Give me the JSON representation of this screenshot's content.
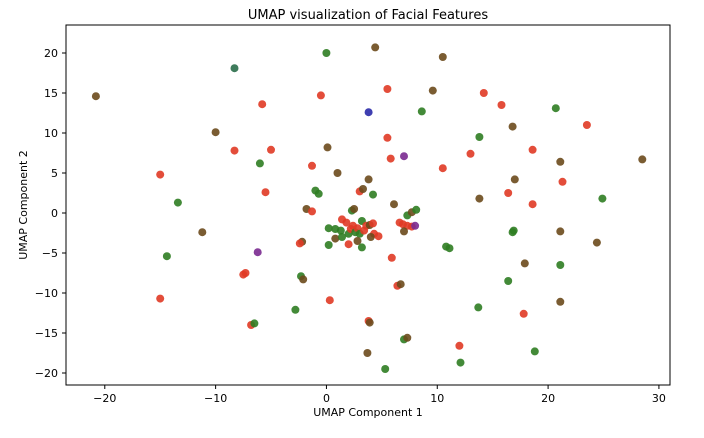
{
  "chart_data": {
    "type": "scatter",
    "title": "UMAP visualization of Facial Features",
    "xlabel": "UMAP Component 1",
    "ylabel": "UMAP Component 2",
    "xlim": [
      -23.5,
      31
    ],
    "ylim": [
      -21.5,
      23.5
    ],
    "xticks": [
      -20,
      -10,
      0,
      10,
      20,
      30
    ],
    "yticks": [
      -20,
      -15,
      -10,
      -5,
      0,
      5,
      10,
      15,
      20
    ],
    "grid": false,
    "colors": {
      "red": "#e03a25",
      "green": "#2f7d22",
      "olive": "#6b4a1c",
      "blue": "#2a2aa8",
      "purple": "#7a2a90",
      "teal": "#2a6e4a"
    },
    "points": [
      {
        "x": -20.8,
        "y": 14.6,
        "c": "olive"
      },
      {
        "x": -8.3,
        "y": 18.1,
        "c": "teal"
      },
      {
        "x": 0.0,
        "y": 20.0,
        "c": "green"
      },
      {
        "x": 4.4,
        "y": 20.7,
        "c": "olive"
      },
      {
        "x": 10.5,
        "y": 19.5,
        "c": "olive"
      },
      {
        "x": -5.8,
        "y": 13.6,
        "c": "red"
      },
      {
        "x": -0.5,
        "y": 14.7,
        "c": "red"
      },
      {
        "x": 5.5,
        "y": 15.5,
        "c": "red"
      },
      {
        "x": 9.6,
        "y": 15.3,
        "c": "olive"
      },
      {
        "x": 14.2,
        "y": 15.0,
        "c": "red"
      },
      {
        "x": 15.8,
        "y": 13.5,
        "c": "red"
      },
      {
        "x": 3.8,
        "y": 12.6,
        "c": "blue"
      },
      {
        "x": 8.6,
        "y": 12.7,
        "c": "green"
      },
      {
        "x": 20.7,
        "y": 13.1,
        "c": "green"
      },
      {
        "x": 23.5,
        "y": 11.0,
        "c": "red"
      },
      {
        "x": -10.0,
        "y": 10.1,
        "c": "olive"
      },
      {
        "x": -8.3,
        "y": 7.8,
        "c": "red"
      },
      {
        "x": -5.0,
        "y": 7.9,
        "c": "red"
      },
      {
        "x": 0.1,
        "y": 8.2,
        "c": "olive"
      },
      {
        "x": 5.5,
        "y": 9.4,
        "c": "red"
      },
      {
        "x": 13.8,
        "y": 9.5,
        "c": "green"
      },
      {
        "x": 16.8,
        "y": 10.8,
        "c": "olive"
      },
      {
        "x": 18.6,
        "y": 7.9,
        "c": "red"
      },
      {
        "x": 28.5,
        "y": 6.7,
        "c": "olive"
      },
      {
        "x": -15.0,
        "y": 4.8,
        "c": "red"
      },
      {
        "x": -6.0,
        "y": 6.2,
        "c": "green"
      },
      {
        "x": -1.3,
        "y": 5.9,
        "c": "red"
      },
      {
        "x": 1.0,
        "y": 5.0,
        "c": "olive"
      },
      {
        "x": 5.8,
        "y": 6.8,
        "c": "red"
      },
      {
        "x": 7.0,
        "y": 7.1,
        "c": "purple"
      },
      {
        "x": 10.5,
        "y": 5.6,
        "c": "red"
      },
      {
        "x": 13.0,
        "y": 7.4,
        "c": "red"
      },
      {
        "x": 21.1,
        "y": 6.4,
        "c": "olive"
      },
      {
        "x": 21.3,
        "y": 3.9,
        "c": "red"
      },
      {
        "x": 17.0,
        "y": 4.2,
        "c": "olive"
      },
      {
        "x": -5.5,
        "y": 2.6,
        "c": "red"
      },
      {
        "x": -1.0,
        "y": 2.8,
        "c": "green"
      },
      {
        "x": -0.7,
        "y": 2.4,
        "c": "green"
      },
      {
        "x": 3.0,
        "y": 2.7,
        "c": "red"
      },
      {
        "x": 3.3,
        "y": 3.0,
        "c": "olive"
      },
      {
        "x": 3.8,
        "y": 4.2,
        "c": "olive"
      },
      {
        "x": 4.2,
        "y": 2.3,
        "c": "green"
      },
      {
        "x": 6.1,
        "y": 1.1,
        "c": "olive"
      },
      {
        "x": 13.8,
        "y": 1.8,
        "c": "olive"
      },
      {
        "x": 16.4,
        "y": 2.5,
        "c": "red"
      },
      {
        "x": 18.6,
        "y": 1.1,
        "c": "red"
      },
      {
        "x": 24.9,
        "y": 1.8,
        "c": "green"
      },
      {
        "x": -13.4,
        "y": 1.3,
        "c": "green"
      },
      {
        "x": -1.8,
        "y": 0.5,
        "c": "olive"
      },
      {
        "x": -1.3,
        "y": 0.2,
        "c": "red"
      },
      {
        "x": 2.3,
        "y": 0.3,
        "c": "green"
      },
      {
        "x": 2.5,
        "y": 0.5,
        "c": "olive"
      },
      {
        "x": 7.3,
        "y": -0.3,
        "c": "green"
      },
      {
        "x": 7.7,
        "y": 0.1,
        "c": "olive"
      },
      {
        "x": 8.1,
        "y": 0.4,
        "c": "green"
      },
      {
        "x": -11.2,
        "y": -2.4,
        "c": "olive"
      },
      {
        "x": -2.2,
        "y": -3.6,
        "c": "olive"
      },
      {
        "x": -2.4,
        "y": -3.8,
        "c": "red"
      },
      {
        "x": 0.2,
        "y": -1.9,
        "c": "green"
      },
      {
        "x": 0.8,
        "y": -2.0,
        "c": "green"
      },
      {
        "x": 1.3,
        "y": -2.2,
        "c": "green"
      },
      {
        "x": 1.4,
        "y": -0.8,
        "c": "red"
      },
      {
        "x": 1.8,
        "y": -1.2,
        "c": "red"
      },
      {
        "x": 2.0,
        "y": -2.6,
        "c": "green"
      },
      {
        "x": 2.2,
        "y": -2.0,
        "c": "red"
      },
      {
        "x": 2.4,
        "y": -1.6,
        "c": "red"
      },
      {
        "x": 2.6,
        "y": -2.4,
        "c": "green"
      },
      {
        "x": 2.8,
        "y": -1.9,
        "c": "red"
      },
      {
        "x": 3.0,
        "y": -2.6,
        "c": "green"
      },
      {
        "x": 3.2,
        "y": -1.0,
        "c": "green"
      },
      {
        "x": 3.4,
        "y": -2.2,
        "c": "red"
      },
      {
        "x": 3.6,
        "y": -1.6,
        "c": "red"
      },
      {
        "x": 3.9,
        "y": -1.5,
        "c": "olive"
      },
      {
        "x": 4.2,
        "y": -1.3,
        "c": "red"
      },
      {
        "x": 4.3,
        "y": -2.6,
        "c": "red"
      },
      {
        "x": 4.0,
        "y": -3.0,
        "c": "olive"
      },
      {
        "x": 4.7,
        "y": -2.9,
        "c": "red"
      },
      {
        "x": 0.2,
        "y": -4.0,
        "c": "green"
      },
      {
        "x": 0.8,
        "y": -3.2,
        "c": "olive"
      },
      {
        "x": 1.4,
        "y": -3.0,
        "c": "green"
      },
      {
        "x": 2.0,
        "y": -3.9,
        "c": "red"
      },
      {
        "x": 2.8,
        "y": -3.5,
        "c": "olive"
      },
      {
        "x": 3.2,
        "y": -4.3,
        "c": "green"
      },
      {
        "x": 6.6,
        "y": -1.2,
        "c": "red"
      },
      {
        "x": 6.9,
        "y": -1.4,
        "c": "red"
      },
      {
        "x": 7.3,
        "y": -1.6,
        "c": "red"
      },
      {
        "x": 7.7,
        "y": -1.7,
        "c": "red"
      },
      {
        "x": 8.0,
        "y": -1.6,
        "c": "purple"
      },
      {
        "x": 7.0,
        "y": -2.3,
        "c": "olive"
      },
      {
        "x": 5.9,
        "y": -5.6,
        "c": "red"
      },
      {
        "x": -14.4,
        "y": -5.4,
        "c": "green"
      },
      {
        "x": -6.2,
        "y": -4.9,
        "c": "purple"
      },
      {
        "x": 10.8,
        "y": -4.2,
        "c": "green"
      },
      {
        "x": 11.1,
        "y": -4.4,
        "c": "green"
      },
      {
        "x": 16.8,
        "y": -2.4,
        "c": "green"
      },
      {
        "x": 16.9,
        "y": -2.2,
        "c": "green"
      },
      {
        "x": 21.1,
        "y": -2.3,
        "c": "olive"
      },
      {
        "x": 24.4,
        "y": -3.7,
        "c": "olive"
      },
      {
        "x": 17.9,
        "y": -6.3,
        "c": "olive"
      },
      {
        "x": 21.1,
        "y": -6.5,
        "c": "green"
      },
      {
        "x": -7.5,
        "y": -7.7,
        "c": "red"
      },
      {
        "x": -7.3,
        "y": -7.5,
        "c": "red"
      },
      {
        "x": -2.3,
        "y": -7.9,
        "c": "green"
      },
      {
        "x": -2.1,
        "y": -8.3,
        "c": "olive"
      },
      {
        "x": 6.4,
        "y": -9.1,
        "c": "red"
      },
      {
        "x": 6.7,
        "y": -8.9,
        "c": "olive"
      },
      {
        "x": 16.4,
        "y": -8.5,
        "c": "green"
      },
      {
        "x": -15.0,
        "y": -10.7,
        "c": "red"
      },
      {
        "x": 0.3,
        "y": -10.9,
        "c": "red"
      },
      {
        "x": 13.7,
        "y": -11.8,
        "c": "green"
      },
      {
        "x": 17.8,
        "y": -12.6,
        "c": "red"
      },
      {
        "x": 21.1,
        "y": -11.1,
        "c": "olive"
      },
      {
        "x": -6.8,
        "y": -14.0,
        "c": "red"
      },
      {
        "x": -6.5,
        "y": -13.8,
        "c": "green"
      },
      {
        "x": -2.8,
        "y": -12.1,
        "c": "green"
      },
      {
        "x": 3.8,
        "y": -13.5,
        "c": "red"
      },
      {
        "x": 3.9,
        "y": -13.7,
        "c": "olive"
      },
      {
        "x": 7.0,
        "y": -15.8,
        "c": "green"
      },
      {
        "x": 7.3,
        "y": -15.6,
        "c": "olive"
      },
      {
        "x": 12.0,
        "y": -16.6,
        "c": "red"
      },
      {
        "x": 18.8,
        "y": -17.3,
        "c": "green"
      },
      {
        "x": 3.7,
        "y": -17.5,
        "c": "olive"
      },
      {
        "x": 12.1,
        "y": -18.7,
        "c": "green"
      },
      {
        "x": 5.3,
        "y": -19.5,
        "c": "green"
      }
    ]
  }
}
